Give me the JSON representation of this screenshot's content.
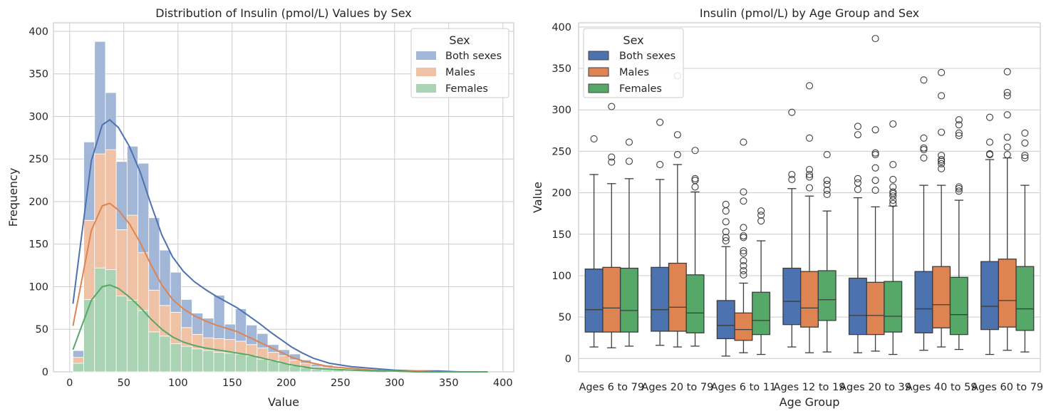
{
  "colors": {
    "Both sexes": "#4c72b0",
    "Males": "#dd8452",
    "Females": "#55a868",
    "Both sexes_light": "#a2b6d8",
    "Males_light": "#efc1a5",
    "Females_light": "#a9d3b3"
  },
  "chart_data": [
    {
      "type": "bar",
      "subtype": "stacked-histogram-with-kde",
      "title": "Distribution of Insulin (pmol/L) Values by Sex",
      "xlabel": "Value",
      "ylabel": "Frequency",
      "xlim": [
        -15,
        410
      ],
      "ylim": [
        0,
        410
      ],
      "xticks": [
        0,
        50,
        100,
        150,
        200,
        250,
        300,
        350,
        400
      ],
      "yticks": [
        0,
        50,
        100,
        150,
        200,
        250,
        300,
        350,
        400
      ],
      "grid": true,
      "legend": {
        "title": "Sex",
        "position": "top-right",
        "entries": [
          "Both sexes",
          "Males",
          "Females"
        ]
      },
      "bin_edges": [
        3,
        13,
        23,
        33,
        43,
        53,
        63,
        73,
        83,
        93,
        103,
        113,
        123,
        133,
        143,
        153,
        163,
        173,
        183,
        193,
        203,
        213,
        223,
        233,
        243,
        253,
        263,
        273,
        283,
        293,
        303,
        313,
        323,
        333,
        343,
        353,
        363,
        373,
        383
      ],
      "series": [
        {
          "name": "Females",
          "values": [
            10,
            85,
            122,
            120,
            89,
            84,
            72,
            47,
            42,
            33,
            30,
            27,
            25,
            23,
            22,
            21,
            19,
            15,
            13,
            10,
            7,
            5,
            3,
            2,
            2,
            1,
            1,
            1,
            0,
            0,
            0,
            0,
            0,
            0,
            0,
            0,
            0,
            0
          ]
        },
        {
          "name": "Males",
          "values": [
            7,
            93,
            134,
            141,
            78,
            100,
            68,
            49,
            36,
            37,
            22,
            17,
            15,
            16,
            16,
            15,
            13,
            13,
            10,
            9,
            7,
            5,
            3,
            3,
            2,
            2,
            1,
            1,
            0,
            1,
            0,
            0,
            0,
            0,
            0,
            0,
            0,
            0
          ]
        },
        {
          "name": "Both sexes",
          "values": [
            8,
            92,
            132,
            67,
            80,
            81,
            105,
            85,
            65,
            47,
            33,
            25,
            23,
            51,
            18,
            38,
            23,
            17,
            9,
            7,
            7,
            4,
            3,
            3,
            1,
            1,
            1,
            0,
            0,
            0,
            0,
            0,
            0,
            0,
            0,
            0,
            0,
            0
          ]
        }
      ],
      "kde": [
        {
          "name": "Both sexes",
          "x": [
            3,
            10,
            20,
            30,
            37,
            45,
            55,
            65,
            75,
            85,
            95,
            105,
            115,
            125,
            135,
            145,
            155,
            165,
            175,
            185,
            195,
            205,
            215,
            225,
            240,
            260,
            280,
            300,
            320,
            340,
            360,
            386
          ],
          "y": [
            80,
            150,
            248,
            290,
            296,
            287,
            265,
            235,
            197,
            161,
            135,
            118,
            106,
            97,
            89,
            82,
            75,
            66,
            57,
            47,
            38,
            29,
            22,
            16,
            10,
            6,
            4,
            2,
            1,
            1,
            0,
            0
          ]
        },
        {
          "name": "Males",
          "x": [
            3,
            10,
            20,
            30,
            37,
            45,
            55,
            65,
            75,
            85,
            95,
            105,
            115,
            125,
            135,
            145,
            155,
            165,
            175,
            185,
            195,
            205,
            215,
            225,
            240,
            260,
            280,
            300,
            320,
            340,
            360,
            386
          ],
          "y": [
            54,
            100,
            166,
            195,
            198,
            190,
            174,
            152,
            126,
            102,
            85,
            74,
            66,
            60,
            55,
            51,
            47,
            41,
            35,
            29,
            23,
            17,
            13,
            10,
            6,
            4,
            2,
            1,
            1,
            0,
            0,
            0
          ]
        },
        {
          "name": "Females",
          "x": [
            3,
            10,
            20,
            30,
            37,
            45,
            55,
            65,
            75,
            85,
            95,
            105,
            115,
            125,
            135,
            145,
            155,
            165,
            175,
            185,
            195,
            205,
            215,
            225,
            240,
            260,
            280,
            300,
            320,
            340,
            360,
            386
          ],
          "y": [
            26,
            50,
            84,
            100,
            102,
            98,
            88,
            76,
            62,
            50,
            41,
            35,
            31,
            28,
            26,
            24,
            22,
            20,
            17,
            14,
            11,
            8,
            6,
            4,
            3,
            2,
            1,
            1,
            0,
            0,
            0,
            0
          ]
        }
      ]
    },
    {
      "type": "box",
      "title": "Insulin (pmol/L) by Age Group and Sex",
      "xlabel": "Age Group",
      "ylabel": "Value",
      "ylim": [
        -16,
        405
      ],
      "yticks": [
        0,
        50,
        100,
        150,
        200,
        250,
        300,
        350,
        400
      ],
      "grid": true,
      "legend": {
        "title": "Sex",
        "position": "top-left",
        "entries": [
          "Both sexes",
          "Males",
          "Females"
        ]
      },
      "categories": [
        "Ages 6 to 79",
        "Ages 20 to 79",
        "Ages 6 to 11",
        "Ages 12 to 19",
        "Ages 20 to 39",
        "Ages 40 to 59",
        "Ages 60 to 79"
      ],
      "series": [
        {
          "name": "Both sexes",
          "boxes": [
            {
              "whislo": 14,
              "q1": 32,
              "med": 59,
              "q3": 108,
              "whishi": 222,
              "fliers": [
                265
              ]
            },
            {
              "whislo": 16,
              "q1": 33,
              "med": 59,
              "q3": 110,
              "whishi": 216,
              "fliers": [
                234,
                285
              ]
            },
            {
              "whislo": 3,
              "q1": 24,
              "med": 40,
              "q3": 70,
              "whishi": 135,
              "fliers": [
                142,
                146,
                153,
                165,
                178,
                186
              ]
            },
            {
              "whislo": 14,
              "q1": 41,
              "med": 69,
              "q3": 109,
              "whishi": 205,
              "fliers": [
                216,
                222,
                297
              ]
            },
            {
              "whislo": 7,
              "q1": 29,
              "med": 52,
              "q3": 97,
              "whishi": 194,
              "fliers": [
                204,
                212,
                217,
                270,
                280
              ]
            },
            {
              "whislo": 10,
              "q1": 31,
              "med": 60,
              "q3": 105,
              "whishi": 209,
              "fliers": [
                242,
                252,
                254,
                266,
                336
              ]
            },
            {
              "whislo": 5,
              "q1": 35,
              "med": 63,
              "q3": 117,
              "whishi": 240,
              "fliers": [
                246,
                247,
                261,
                291
              ]
            }
          ]
        },
        {
          "name": "Males",
          "boxes": [
            {
              "whislo": 13,
              "q1": 32,
              "med": 61,
              "q3": 110,
              "whishi": 211,
              "fliers": [
                237,
                243,
                304
              ]
            },
            {
              "whislo": 14,
              "q1": 33,
              "med": 62,
              "q3": 115,
              "whishi": 234,
              "fliers": [
                246,
                270,
                341
              ]
            },
            {
              "whislo": 7,
              "q1": 22,
              "med": 35,
              "q3": 55,
              "whishi": 91,
              "fliers": [
                101,
                106,
                112,
                118,
                127,
                130,
                146,
                148,
                158,
                190,
                201,
                261
              ]
            },
            {
              "whislo": 7,
              "q1": 38,
              "med": 61,
              "q3": 105,
              "whishi": 196,
              "fliers": [
                206,
                219,
                222,
                228,
                266,
                329
              ]
            },
            {
              "whislo": 9,
              "q1": 29,
              "med": 52,
              "q3": 92,
              "whishi": 183,
              "fliers": [
                203,
                215,
                230,
                246,
                248,
                276,
                386
              ]
            },
            {
              "whislo": 14,
              "q1": 37,
              "med": 65,
              "q3": 111,
              "whishi": 209,
              "fliers": [
                229,
                235,
                238,
                240,
                245,
                273,
                317,
                345
              ]
            },
            {
              "whislo": 10,
              "q1": 38,
              "med": 70,
              "q3": 120,
              "whishi": 242,
              "fliers": [
                246,
                255,
                267,
                294,
                317,
                321,
                346
              ]
            }
          ]
        },
        {
          "name": "Females",
          "boxes": [
            {
              "whislo": 15,
              "q1": 32,
              "med": 58,
              "q3": 109,
              "whishi": 217,
              "fliers": [
                238,
                261
              ]
            },
            {
              "whislo": 15,
              "q1": 31,
              "med": 55,
              "q3": 101,
              "whishi": 201,
              "fliers": [
                207,
                215,
                217,
                251
              ]
            },
            {
              "whislo": 5,
              "q1": 29,
              "med": 46,
              "q3": 80,
              "whishi": 142,
              "fliers": [
                166,
                173,
                178
              ]
            },
            {
              "whislo": 8,
              "q1": 46,
              "med": 71,
              "q3": 106,
              "whishi": 178,
              "fliers": [
                198,
                203,
                210,
                215,
                246
              ]
            },
            {
              "whislo": 5,
              "q1": 32,
              "med": 51,
              "q3": 93,
              "whishi": 184,
              "fliers": [
                187,
                191,
                196,
                199,
                201,
                207,
                216,
                234,
                283
              ]
            },
            {
              "whislo": 11,
              "q1": 29,
              "med": 53,
              "q3": 98,
              "whishi": 191,
              "fliers": [
                202,
                205,
                207,
                269,
                272,
                282,
                288
              ]
            },
            {
              "whislo": 8,
              "q1": 34,
              "med": 60,
              "q3": 111,
              "whishi": 209,
              "fliers": [
                242,
                245,
                260,
                272
              ]
            }
          ]
        }
      ]
    }
  ]
}
